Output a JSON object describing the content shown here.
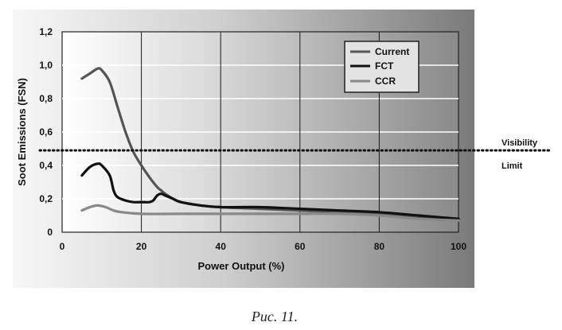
{
  "chart_data": {
    "type": "line",
    "title": "",
    "xlabel": "Power Output (%)",
    "ylabel": "Soot Emissions (FSN)",
    "xlim": [
      0,
      100
    ],
    "ylim": [
      0,
      1.2
    ],
    "xticks": [
      "0",
      "20",
      "40",
      "60",
      "80",
      "100"
    ],
    "yticks": [
      "0",
      "0,2",
      "0,4",
      "0,6",
      "0,8",
      "1,0",
      "1,2"
    ],
    "grid": true,
    "legend_position": "top-right",
    "series": [
      {
        "name": "Current",
        "color": "#555555",
        "x": [
          5,
          7,
          9,
          10,
          12,
          14,
          16,
          18,
          20,
          22,
          24,
          25,
          26,
          28,
          30,
          35,
          40,
          50,
          60,
          70,
          80,
          90,
          100
        ],
        "y": [
          0.92,
          0.95,
          0.98,
          0.97,
          0.9,
          0.75,
          0.6,
          0.48,
          0.4,
          0.33,
          0.27,
          0.25,
          0.23,
          0.2,
          0.18,
          0.16,
          0.15,
          0.14,
          0.13,
          0.12,
          0.11,
          0.09,
          0.07
        ]
      },
      {
        "name": "FCT",
        "color": "#111111",
        "x": [
          5,
          7,
          9,
          10,
          12,
          13,
          14,
          16,
          18,
          20,
          22,
          23,
          24,
          25,
          26,
          28,
          30,
          35,
          40,
          50,
          60,
          70,
          80,
          90,
          100
        ],
        "y": [
          0.34,
          0.39,
          0.41,
          0.4,
          0.34,
          0.25,
          0.21,
          0.19,
          0.18,
          0.18,
          0.18,
          0.19,
          0.22,
          0.23,
          0.22,
          0.2,
          0.18,
          0.16,
          0.15,
          0.15,
          0.14,
          0.13,
          0.12,
          0.1,
          0.08
        ]
      },
      {
        "name": "CCR",
        "color": "#888888",
        "x": [
          5,
          7,
          9,
          11,
          13,
          15,
          20,
          30,
          40,
          50,
          60,
          70,
          80,
          90,
          100
        ],
        "y": [
          0.13,
          0.15,
          0.16,
          0.15,
          0.13,
          0.12,
          0.11,
          0.11,
          0.11,
          0.11,
          0.11,
          0.11,
          0.1,
          0.08,
          0.07
        ]
      }
    ],
    "reference_line": {
      "value": 0.49,
      "style": "dotted",
      "label_line1": "Visibility",
      "label_line2": "Limit"
    }
  },
  "caption": "Рис. 11."
}
